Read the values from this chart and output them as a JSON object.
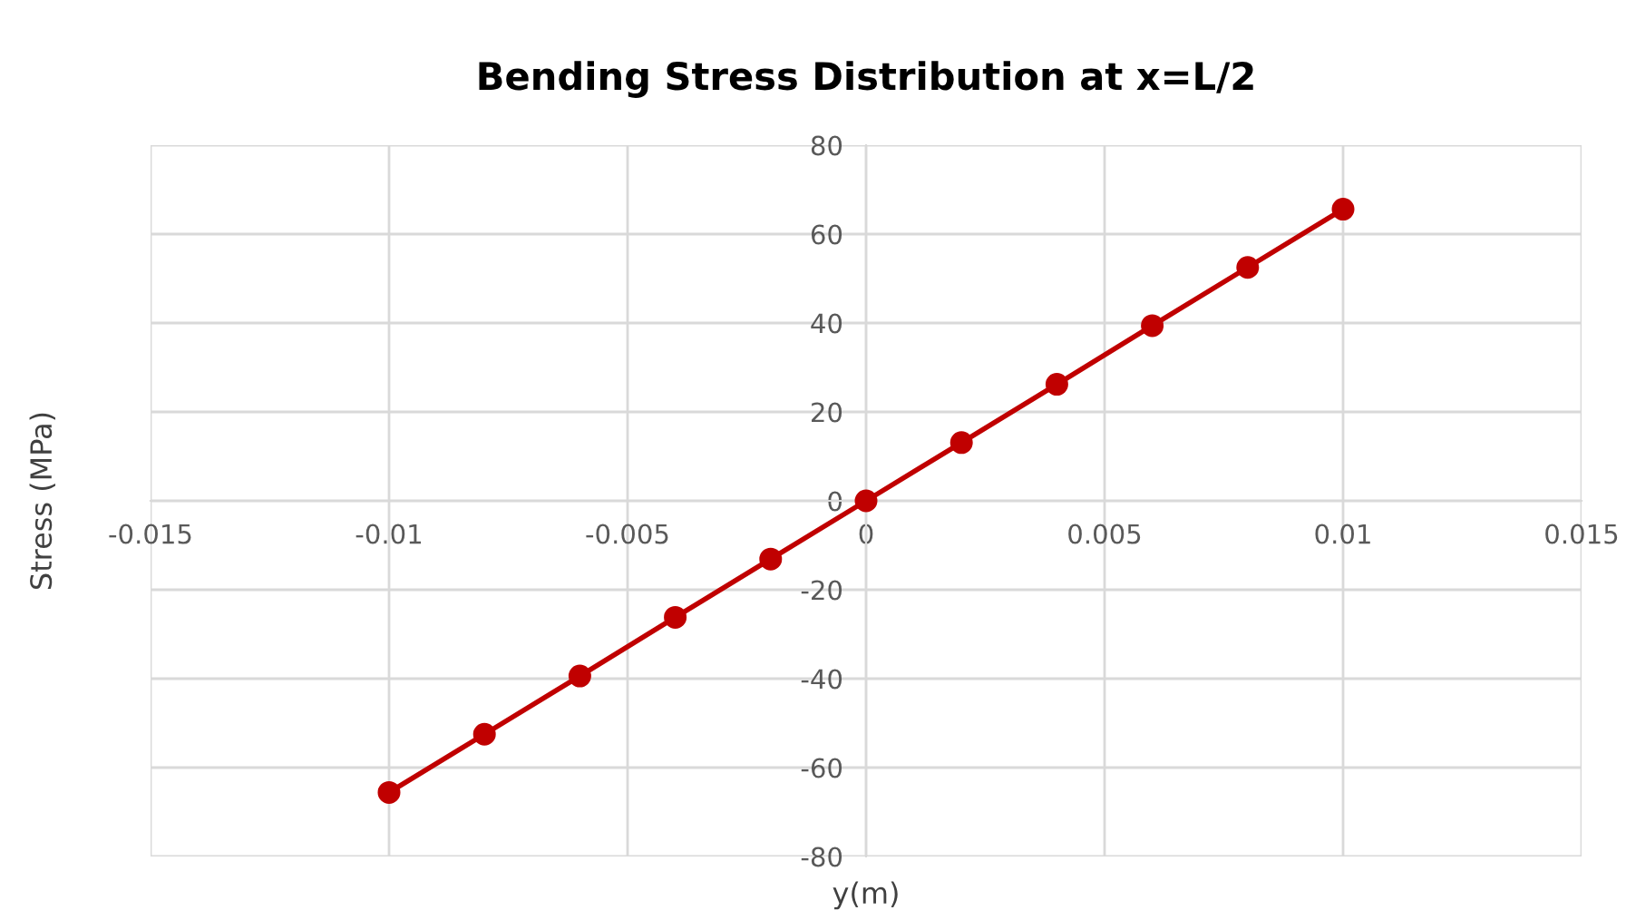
{
  "chart_data": {
    "type": "line",
    "title": "Bending Stress Distribution at x=L/2",
    "xlabel": "y(m)",
    "ylabel": "Stress (MPa)",
    "x": [
      -0.01,
      -0.008,
      -0.006,
      -0.004,
      -0.002,
      0,
      0.002,
      0.004,
      0.006,
      0.008,
      0.01
    ],
    "series": [
      {
        "color": "#c00000",
        "values": [
          -65.6,
          -52.5,
          -39.4,
          -26.2,
          -13.1,
          0,
          13.1,
          26.2,
          39.4,
          52.5,
          65.6
        ]
      }
    ],
    "xlim": [
      -0.015,
      0.015
    ],
    "xticks": [
      -0.015,
      -0.01,
      -0.005,
      0,
      0.005,
      0.01,
      0.015
    ],
    "ylim": [
      -80,
      80
    ],
    "yticks": [
      -80,
      -60,
      -40,
      -20,
      0,
      20,
      40,
      60,
      80
    ],
    "grid": true,
    "marker": "circle",
    "line_style": "solid"
  }
}
